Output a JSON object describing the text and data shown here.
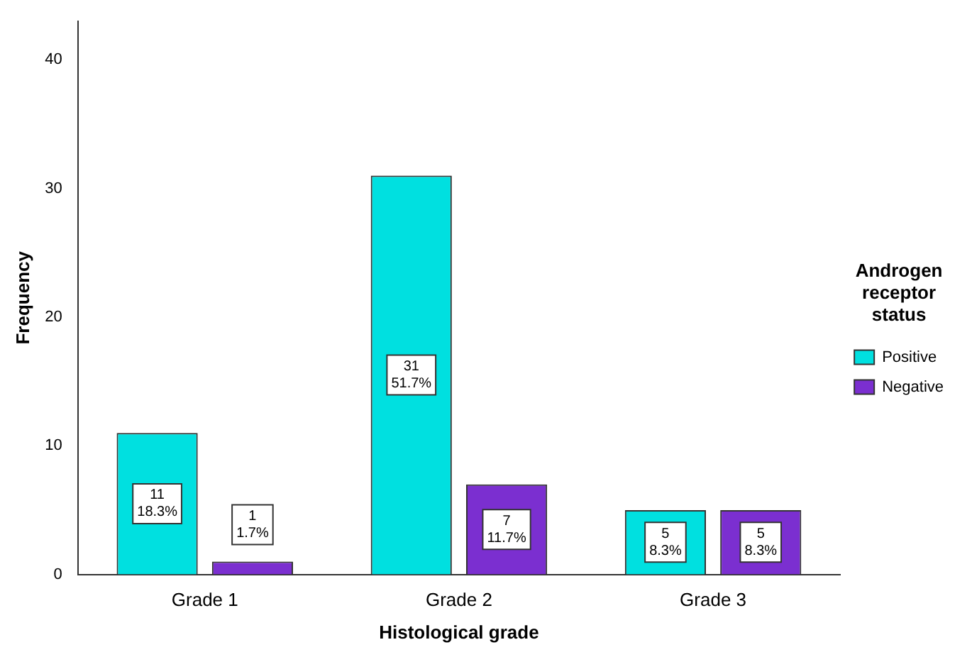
{
  "chart_data": {
    "type": "bar",
    "xlabel": "Histological grade",
    "ylabel": "Frequency",
    "legend_title": "Androgen receptor status",
    "categories": [
      "Grade 1",
      "Grade 2",
      "Grade 3"
    ],
    "series": [
      {
        "name": "Positive",
        "color": "#00e0e0",
        "values": [
          11,
          31,
          5
        ],
        "value_labels": [
          "11\n18.3%",
          "31\n51.7%",
          "5\n8.3%"
        ]
      },
      {
        "name": "Negative",
        "color": "#7b2fd0",
        "values": [
          1,
          7,
          5
        ],
        "value_labels": [
          "1\n1.7%",
          "7\n11.7%",
          "5\n8.3%"
        ]
      }
    ],
    "ylim": [
      0,
      43
    ],
    "yticks": [
      0,
      10,
      20,
      30,
      40
    ],
    "grid": false,
    "legend": "right"
  }
}
